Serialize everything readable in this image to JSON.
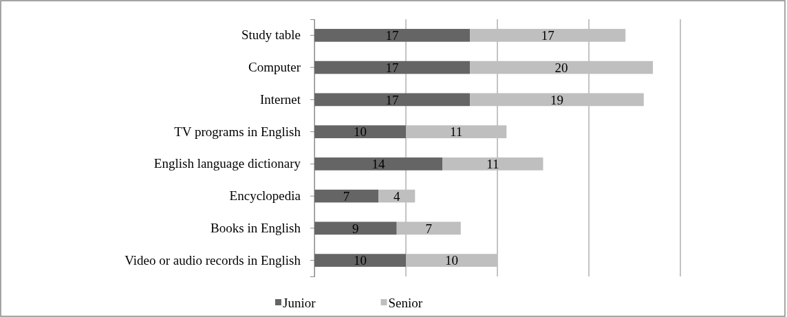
{
  "chart_data": {
    "type": "bar",
    "orientation": "horizontal",
    "stacked": true,
    "categories": [
      "Study table",
      "Computer",
      "Internet",
      "TV programs in English",
      "English language dictionary ",
      "Encyclopedia",
      "Books in English",
      "Video or audio records in English"
    ],
    "series": [
      {
        "name": "Junior",
        "color": "#656565",
        "values": [
          17,
          17,
          17,
          10,
          14,
          7,
          9,
          10
        ]
      },
      {
        "name": "Senior",
        "color": "#bfbfbf",
        "values": [
          17,
          20,
          19,
          11,
          11,
          4,
          7,
          10
        ]
      }
    ],
    "xlim": [
      0,
      40
    ],
    "xticks": [
      {
        "value": 0,
        "label": null
      },
      {
        "value": 10,
        "label": null
      },
      {
        "value": 20,
        "label": null
      },
      {
        "value": 30,
        "label": null
      },
      {
        "value": 40,
        "label": null
      }
    ],
    "tick_labels": "y",
    "grid": "x",
    "data_labels": true,
    "legend": "bottom"
  }
}
